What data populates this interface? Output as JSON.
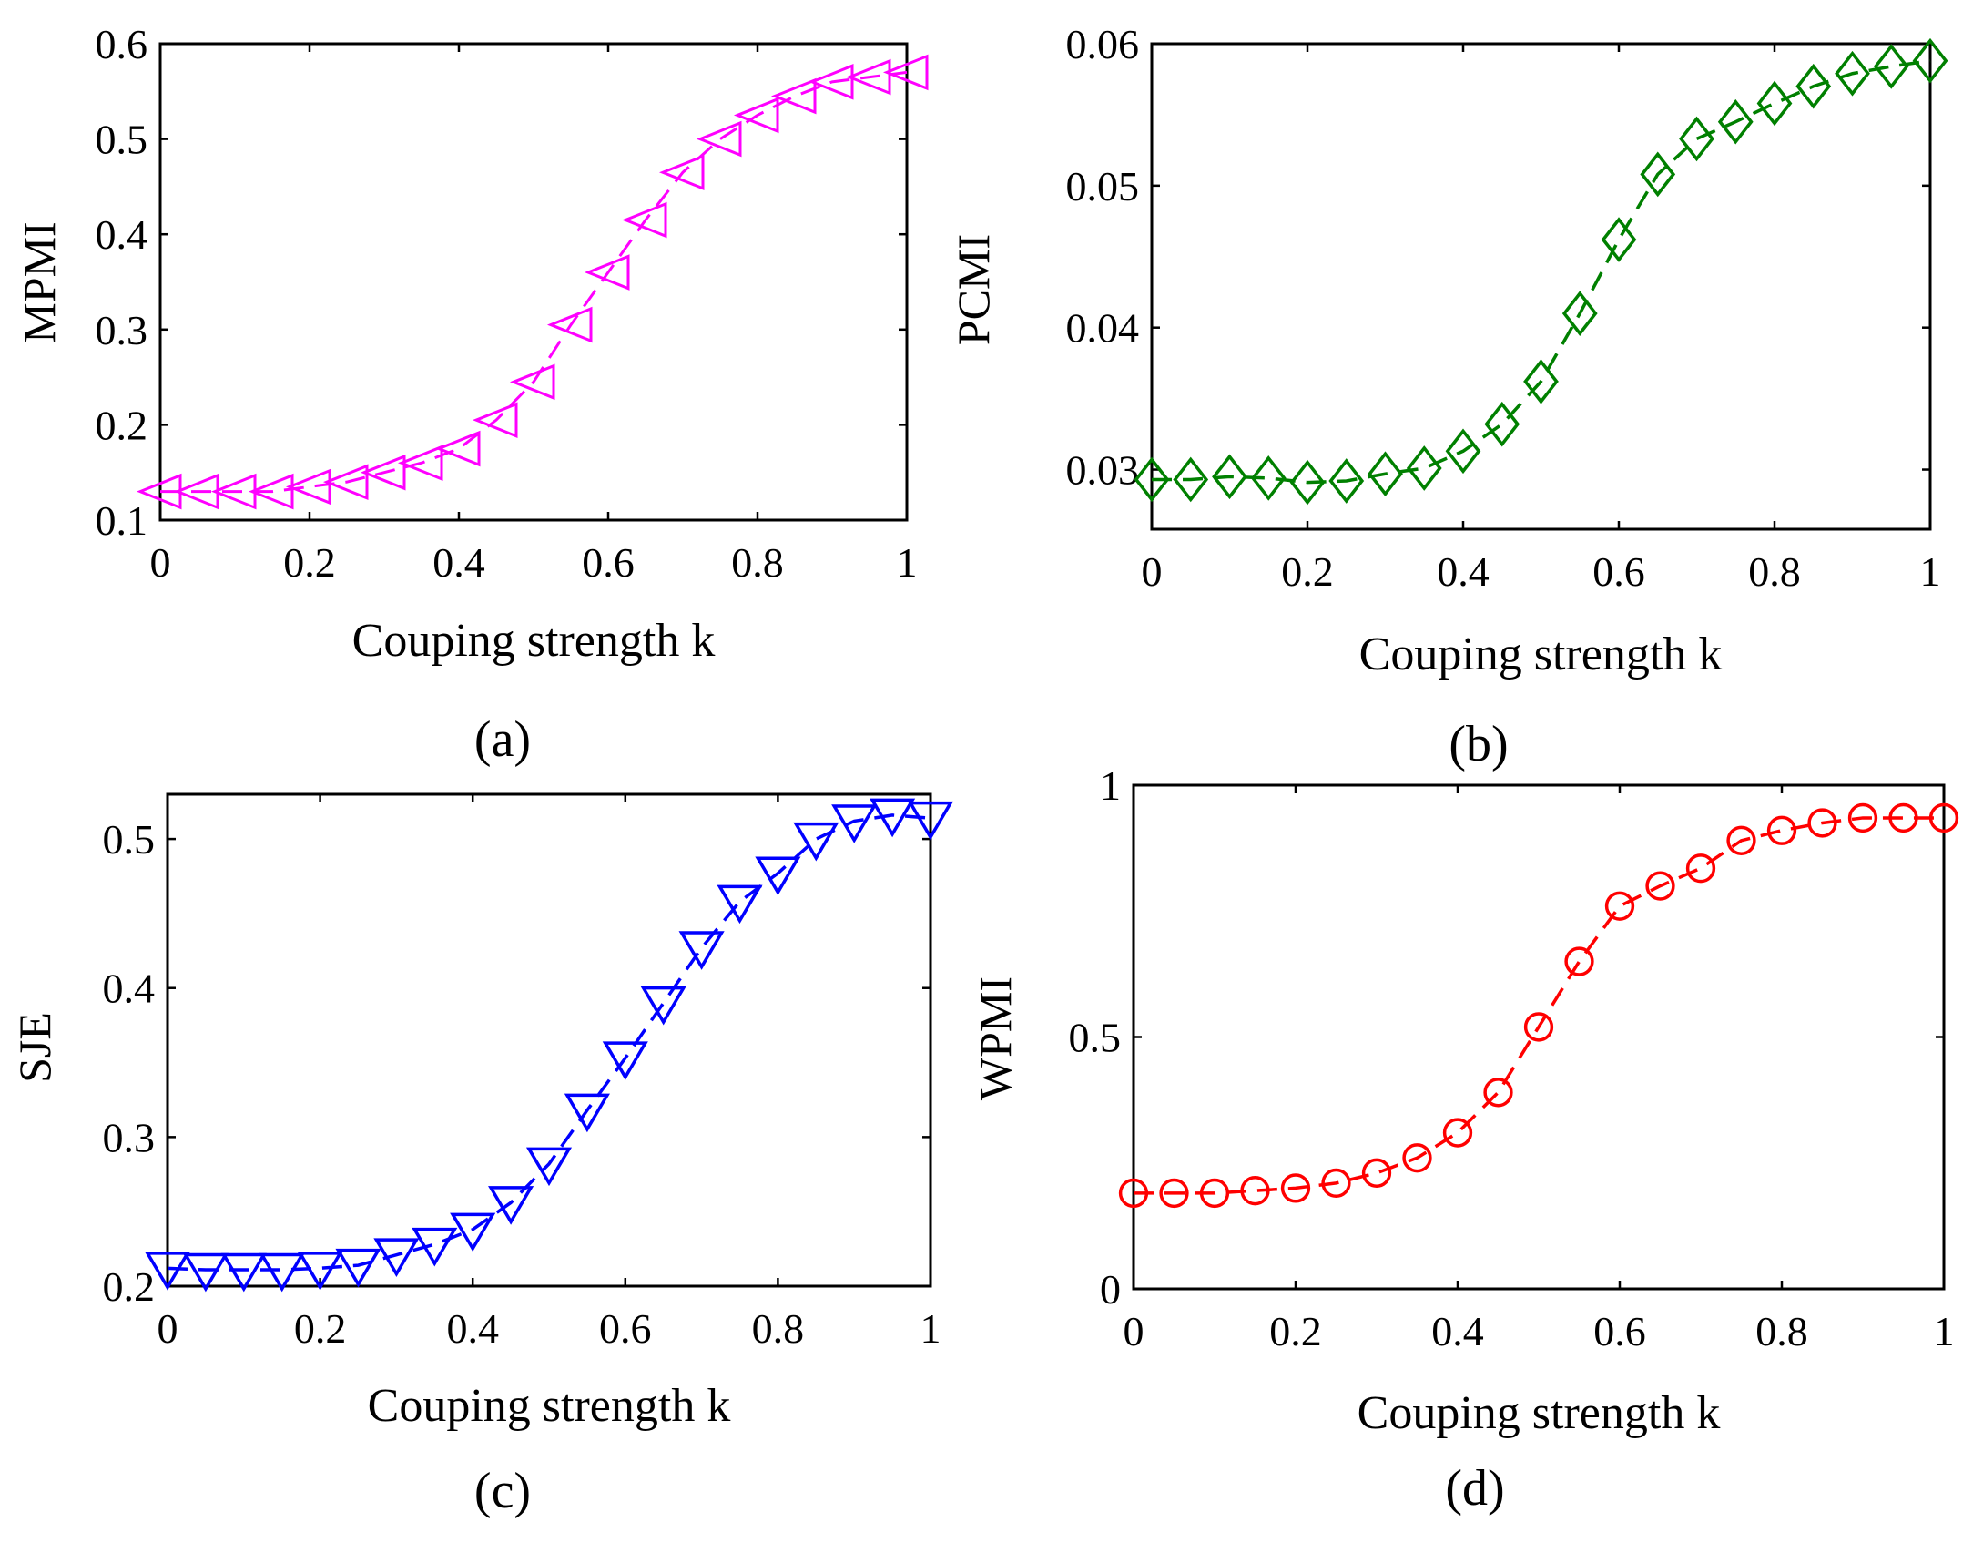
{
  "chart_data": [
    {
      "type": "line",
      "panel_label": "(a)",
      "xlabel": "Couping strength k",
      "ylabel": "MPMI",
      "xlim": [
        0,
        1
      ],
      "ylim": [
        0.1,
        0.6
      ],
      "xticks": [
        "0",
        "0.2",
        "0.4",
        "0.6",
        "0.8",
        "1"
      ],
      "yticks": [
        "0.1",
        "0.2",
        "0.3",
        "0.4",
        "0.5",
        "0.6"
      ],
      "marker": "triangle-left",
      "color": "#ff00ff",
      "x": [
        0,
        0.05,
        0.1,
        0.15,
        0.2,
        0.25,
        0.3,
        0.35,
        0.4,
        0.45,
        0.5,
        0.55,
        0.6,
        0.65,
        0.7,
        0.75,
        0.8,
        0.85,
        0.9,
        0.95,
        1.0
      ],
      "values": [
        0.13,
        0.13,
        0.13,
        0.13,
        0.135,
        0.14,
        0.15,
        0.16,
        0.175,
        0.205,
        0.245,
        0.305,
        0.36,
        0.415,
        0.465,
        0.5,
        0.525,
        0.545,
        0.56,
        0.565,
        0.57
      ]
    },
    {
      "type": "line",
      "panel_label": "(b)",
      "xlabel": "Couping strength k",
      "ylabel": "PCMI",
      "xlim": [
        0,
        1
      ],
      "ylim": [
        0.0258,
        0.06
      ],
      "xticks": [
        "0",
        "0.2",
        "0.4",
        "0.6",
        "0.8",
        "1"
      ],
      "yticks": [
        "0.03",
        "0.04",
        "0.05",
        "0.06"
      ],
      "marker": "diamond",
      "color": "#008000",
      "x": [
        0,
        0.05,
        0.1,
        0.15,
        0.2,
        0.25,
        0.3,
        0.35,
        0.4,
        0.45,
        0.5,
        0.55,
        0.6,
        0.65,
        0.7,
        0.75,
        0.8,
        0.85,
        0.9,
        0.95,
        1.0
      ],
      "values": [
        0.0293,
        0.0293,
        0.0295,
        0.0294,
        0.0291,
        0.0292,
        0.0297,
        0.0301,
        0.0313,
        0.0332,
        0.0362,
        0.041,
        0.0462,
        0.0508,
        0.0533,
        0.0545,
        0.0558,
        0.057,
        0.0579,
        0.0584,
        0.0588
      ]
    },
    {
      "type": "line",
      "panel_label": "(c)",
      "xlabel": "Couping strength k",
      "ylabel": "SJE",
      "xlim": [
        0,
        1
      ],
      "ylim": [
        0.2,
        0.53
      ],
      "xticks": [
        "0",
        "0.2",
        "0.4",
        "0.6",
        "0.8",
        "1"
      ],
      "yticks": [
        "0.2",
        "0.3",
        "0.4",
        "0.5"
      ],
      "marker": "triangle-down",
      "color": "#0000ff",
      "x": [
        0,
        0.05,
        0.1,
        0.15,
        0.2,
        0.25,
        0.3,
        0.35,
        0.4,
        0.45,
        0.5,
        0.55,
        0.6,
        0.65,
        0.7,
        0.75,
        0.8,
        0.85,
        0.9,
        0.95,
        1.0
      ],
      "values": [
        0.212,
        0.211,
        0.211,
        0.211,
        0.212,
        0.214,
        0.221,
        0.228,
        0.238,
        0.256,
        0.282,
        0.318,
        0.353,
        0.39,
        0.427,
        0.458,
        0.477,
        0.5,
        0.512,
        0.516,
        0.514
      ]
    },
    {
      "type": "line",
      "panel_label": "(d)",
      "xlabel": "Couping strength k",
      "ylabel": "WPMI",
      "xlim": [
        0,
        1
      ],
      "ylim": [
        0,
        1
      ],
      "xticks": [
        "0",
        "0.2",
        "0.4",
        "0.6",
        "0.8",
        "1"
      ],
      "yticks": [
        "0",
        "0.5",
        "1"
      ],
      "marker": "circle",
      "color": "#ff0000",
      "x": [
        0,
        0.05,
        0.1,
        0.15,
        0.2,
        0.25,
        0.3,
        0.35,
        0.4,
        0.45,
        0.5,
        0.55,
        0.6,
        0.65,
        0.7,
        0.75,
        0.8,
        0.85,
        0.9,
        0.95,
        1.0
      ],
      "values": [
        0.19,
        0.19,
        0.19,
        0.195,
        0.2,
        0.21,
        0.23,
        0.26,
        0.31,
        0.39,
        0.52,
        0.65,
        0.76,
        0.8,
        0.835,
        0.89,
        0.91,
        0.925,
        0.935,
        0.935,
        0.935
      ]
    }
  ]
}
